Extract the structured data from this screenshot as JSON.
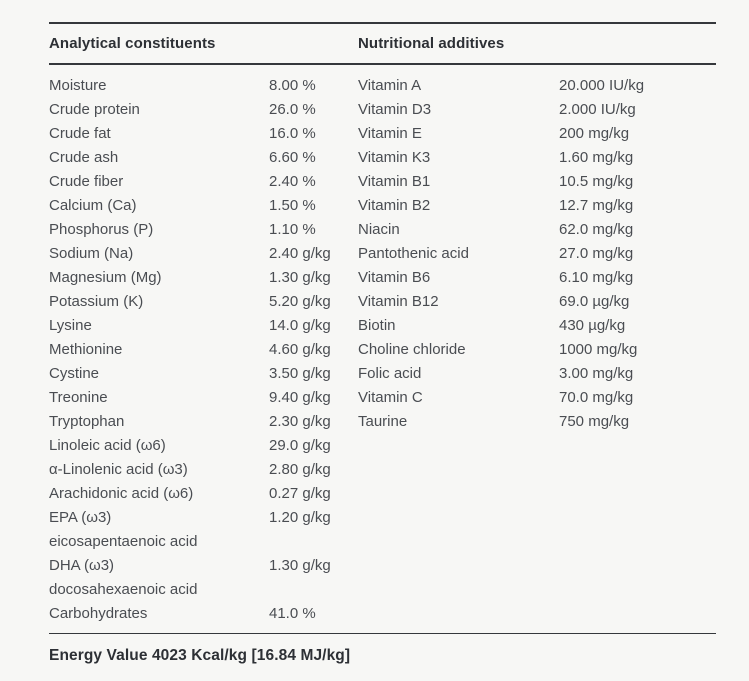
{
  "page": {
    "background_color": "#f7f7f5",
    "rule_color": "#35383c",
    "text_color": "#4a4d52",
    "heading_color": "#2d3035"
  },
  "analytical": {
    "header": "Analytical constituents",
    "rows": [
      {
        "label": "Moisture",
        "value": "8.00 %"
      },
      {
        "label": "Crude protein",
        "value": "26.0 %"
      },
      {
        "label": "Crude fat",
        "value": "16.0 %"
      },
      {
        "label": "Crude ash",
        "value": "6.60 %"
      },
      {
        "label": "Crude fiber",
        "value": "2.40 %"
      },
      {
        "label": "Calcium (Ca)",
        "value": "1.50 %"
      },
      {
        "label": "Phosphorus (P)",
        "value": "1.10 %"
      },
      {
        "label": "Sodium (Na)",
        "value": "2.40 g/kg"
      },
      {
        "label": "Magnesium (Mg)",
        "value": "1.30 g/kg"
      },
      {
        "label": "Potassium (K)",
        "value": "5.20 g/kg"
      },
      {
        "label": "Lysine",
        "value": "14.0 g/kg"
      },
      {
        "label": "Methionine",
        "value": "4.60 g/kg"
      },
      {
        "label": "Cystine",
        "value": "3.50 g/kg"
      },
      {
        "label": "Treonine",
        "value": "9.40 g/kg"
      },
      {
        "label": "Tryptophan",
        "value": "2.30 g/kg"
      },
      {
        "label": "Linoleic acid (ω6)",
        "value": "29.0 g/kg"
      },
      {
        "label": "α-Linolenic acid (ω3)",
        "value": "2.80 g/kg"
      },
      {
        "label": "Arachidonic acid (ω6)",
        "value": "0.27 g/kg"
      },
      {
        "label": "EPA (ω3)",
        "value": "1.20 g/kg"
      },
      {
        "label": "eicosapentaenoic acid",
        "value": ""
      },
      {
        "label": "DHA (ω3)",
        "value": "1.30 g/kg"
      },
      {
        "label": "docosahexaenoic acid",
        "value": ""
      },
      {
        "label": "Carbohydrates",
        "value": "41.0 %"
      }
    ]
  },
  "additives": {
    "header": "Nutritional additives",
    "rows": [
      {
        "label": "Vitamin A",
        "value": "20.000 IU/kg"
      },
      {
        "label": "Vitamin D3",
        "value": "2.000 IU/kg"
      },
      {
        "label": "Vitamin E",
        "value": "200 mg/kg"
      },
      {
        "label": "Vitamin K3",
        "value": "1.60 mg/kg"
      },
      {
        "label": "Vitamin B1",
        "value": "10.5 mg/kg"
      },
      {
        "label": "Vitamin B2",
        "value": "12.7 mg/kg"
      },
      {
        "label": "Niacin",
        "value": "62.0 mg/kg"
      },
      {
        "label": "Pantothenic acid",
        "value": "27.0 mg/kg"
      },
      {
        "label": "Vitamin B6",
        "value": "6.10 mg/kg"
      },
      {
        "label": "Vitamin B12",
        "value": "69.0 µg/kg"
      },
      {
        "label": "Biotin",
        "value": "430 µg/kg"
      },
      {
        "label": "Choline chloride",
        "value": "1000 mg/kg"
      },
      {
        "label": "Folic acid",
        "value": "3.00 mg/kg"
      },
      {
        "label": "Vitamin C",
        "value": "70.0 mg/kg"
      },
      {
        "label": "Taurine",
        "value": "750 mg/kg"
      }
    ]
  },
  "footer": {
    "energy": "Energy Value 4023 Kcal/kg [16.84 MJ/kg]"
  }
}
